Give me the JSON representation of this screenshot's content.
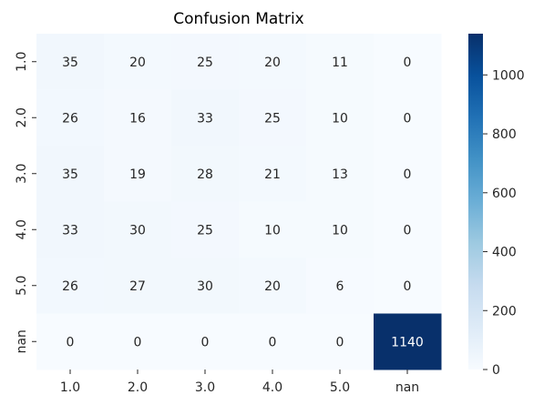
{
  "chart_data": {
    "type": "heatmap",
    "title": "Confusion Matrix",
    "row_labels": [
      "1.0",
      "2.0",
      "3.0",
      "4.0",
      "5.0",
      "nan"
    ],
    "col_labels": [
      "1.0",
      "2.0",
      "3.0",
      "4.0",
      "5.0",
      "nan"
    ],
    "values": [
      [
        35,
        20,
        25,
        20,
        11,
        0
      ],
      [
        26,
        16,
        33,
        25,
        10,
        0
      ],
      [
        35,
        19,
        28,
        21,
        13,
        0
      ],
      [
        33,
        30,
        25,
        10,
        10,
        0
      ],
      [
        26,
        27,
        30,
        20,
        6,
        0
      ],
      [
        0,
        0,
        0,
        0,
        0,
        1140
      ]
    ],
    "colorbar": {
      "cmap": "Blues",
      "vmin": 0,
      "vmax": 1140,
      "ticks": [
        0,
        200,
        400,
        600,
        800,
        1000
      ],
      "colors": [
        "#f7fbff",
        "#deebf7",
        "#c6dbef",
        "#9ecae1",
        "#6baed6",
        "#4292c6",
        "#2171b5",
        "#08519c",
        "#08306b"
      ]
    },
    "annotation_light_color": "#ffffff",
    "annotation_dark_color": "#262626"
  }
}
